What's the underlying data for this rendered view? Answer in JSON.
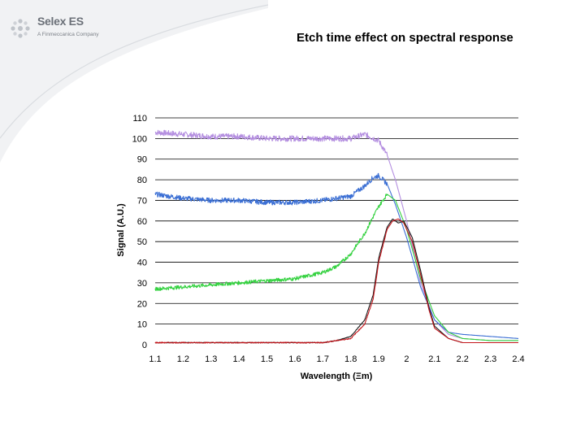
{
  "slide": {
    "title": "Etch time effect on spectral response"
  },
  "logo": {
    "name": "Selex ES",
    "tagline": "A Finmeccanica Company",
    "accent_color": "#c8ccd2"
  },
  "chart_data": {
    "type": "line",
    "title": "Etch time effect on spectral response",
    "xlabel": "Wavelength (Ξm)",
    "ylabel": "Signal (A.U.)",
    "xlim": [
      1.1,
      2.4
    ],
    "ylim": [
      0,
      110
    ],
    "x_ticks": [
      "1.1",
      "1.2",
      "1.3",
      "1.4",
      "1.5",
      "1.6",
      "1.7",
      "1.8",
      "1.9",
      "2",
      "2.1",
      "2.2",
      "2.3",
      "2.4"
    ],
    "y_ticks": [
      "0",
      "10",
      "20",
      "30",
      "40",
      "50",
      "60",
      "70",
      "80",
      "90",
      "100",
      "110"
    ],
    "grid": "horizontal",
    "legend": "none",
    "series": [
      {
        "name": "purple",
        "color": "#b48ee0",
        "x": [
          1.1,
          1.2,
          1.3,
          1.4,
          1.5,
          1.6,
          1.7,
          1.8,
          1.85,
          1.9,
          1.93,
          1.96,
          2.0,
          2.05,
          2.1,
          2.15,
          2.2,
          2.3,
          2.4
        ],
        "y": [
          103,
          102,
          101,
          101,
          100,
          100,
          100,
          100,
          102,
          99,
          92,
          80,
          60,
          30,
          12,
          5,
          3,
          2,
          2
        ]
      },
      {
        "name": "blue",
        "color": "#3b6fd4",
        "x": [
          1.1,
          1.2,
          1.3,
          1.4,
          1.5,
          1.6,
          1.7,
          1.8,
          1.85,
          1.88,
          1.9,
          1.93,
          1.96,
          2.0,
          2.05,
          2.1,
          2.15,
          2.2,
          2.3,
          2.4
        ],
        "y": [
          73,
          71,
          70,
          70,
          69,
          69,
          70,
          72,
          77,
          81,
          82,
          78,
          68,
          52,
          28,
          12,
          6,
          5,
          4,
          3
        ]
      },
      {
        "name": "green",
        "color": "#33d13f",
        "x": [
          1.1,
          1.2,
          1.3,
          1.4,
          1.5,
          1.6,
          1.7,
          1.75,
          1.8,
          1.85,
          1.88,
          1.9,
          1.93,
          1.96,
          2.0,
          2.05,
          2.1,
          2.15,
          2.2,
          2.3,
          2.4
        ],
        "y": [
          27,
          28,
          29,
          30,
          31,
          32,
          35,
          38,
          44,
          54,
          62,
          67,
          73,
          70,
          56,
          32,
          14,
          6,
          3,
          2,
          2
        ]
      },
      {
        "name": "black",
        "color": "#1a1a1a",
        "x": [
          1.1,
          1.2,
          1.3,
          1.4,
          1.5,
          1.6,
          1.7,
          1.75,
          1.8,
          1.85,
          1.88,
          1.9,
          1.93,
          1.95,
          1.97,
          1.99,
          2.02,
          2.05,
          2.08,
          2.1,
          2.15,
          2.2,
          2.3,
          2.4
        ],
        "y": [
          1,
          1,
          1,
          1,
          1,
          1,
          1,
          2,
          4,
          12,
          24,
          42,
          57,
          61,
          59,
          60,
          52,
          36,
          18,
          9,
          3,
          1,
          1,
          1
        ]
      },
      {
        "name": "red",
        "color": "#c4161c",
        "x": [
          1.1,
          1.2,
          1.3,
          1.4,
          1.5,
          1.6,
          1.7,
          1.75,
          1.8,
          1.85,
          1.88,
          1.9,
          1.93,
          1.95,
          1.97,
          1.99,
          2.02,
          2.05,
          2.08,
          2.1,
          2.15,
          2.2,
          2.3,
          2.4
        ],
        "y": [
          1,
          1,
          1,
          1,
          1,
          1,
          1,
          2,
          3,
          10,
          22,
          40,
          56,
          60,
          61,
          59,
          50,
          34,
          17,
          8,
          3,
          1,
          1,
          1
        ]
      }
    ]
  }
}
